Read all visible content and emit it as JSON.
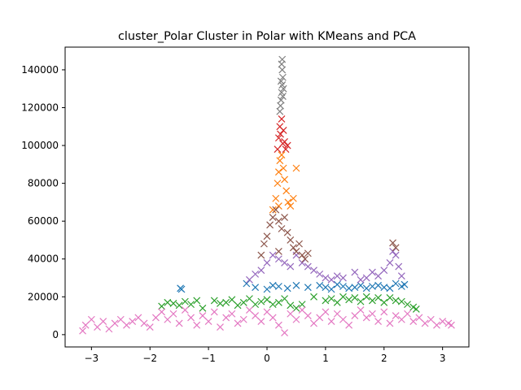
{
  "chart_data": {
    "type": "scatter",
    "title": "cluster_Polar Cluster in Polar with KMeans and PCA",
    "xlabel": "",
    "ylabel": "",
    "xlim": [
      -3.45,
      3.45
    ],
    "ylim": [
      -6500,
      152000
    ],
    "xticks": [
      -3,
      -2,
      -1,
      0,
      1,
      2,
      3
    ],
    "yticks": [
      0,
      20000,
      40000,
      60000,
      80000,
      100000,
      120000,
      140000
    ],
    "marker": "x",
    "grid": false,
    "legend": "none",
    "series": [
      {
        "color": "#1f77b4",
        "points": [
          [
            -1.48,
            24500
          ],
          [
            -1.46,
            24000
          ],
          [
            -0.35,
            27000
          ],
          [
            -0.2,
            25000
          ],
          [
            0.0,
            24000
          ],
          [
            0.1,
            26000
          ],
          [
            0.2,
            25500
          ],
          [
            0.35,
            24500
          ],
          [
            0.5,
            26000
          ],
          [
            0.7,
            25000
          ],
          [
            0.9,
            26000
          ],
          [
            1.0,
            25000
          ],
          [
            1.1,
            24000
          ],
          [
            1.2,
            26500
          ],
          [
            1.3,
            25500
          ],
          [
            1.4,
            24500
          ],
          [
            1.5,
            25000
          ],
          [
            1.6,
            26000
          ],
          [
            1.7,
            24500
          ],
          [
            1.8,
            25500
          ],
          [
            1.9,
            26000
          ],
          [
            2.0,
            25000
          ],
          [
            2.1,
            24500
          ],
          [
            2.2,
            27000
          ],
          [
            2.3,
            25500
          ],
          [
            2.35,
            26500
          ]
        ]
      },
      {
        "color": "#ff7f0e",
        "points": [
          [
            0.1,
            66000
          ],
          [
            0.15,
            72000
          ],
          [
            0.18,
            80000
          ],
          [
            0.2,
            86000
          ],
          [
            0.22,
            92000
          ],
          [
            0.25,
            95000
          ],
          [
            0.28,
            88000
          ],
          [
            0.3,
            82000
          ],
          [
            0.33,
            76000
          ],
          [
            0.36,
            70000
          ],
          [
            0.4,
            68000
          ],
          [
            0.45,
            72000
          ],
          [
            0.5,
            88000
          ],
          [
            0.2,
            68000
          ]
        ]
      },
      {
        "color": "#2ca02c",
        "points": [
          [
            -1.8,
            15000
          ],
          [
            -1.7,
            17000
          ],
          [
            -1.6,
            16500
          ],
          [
            -1.5,
            15500
          ],
          [
            -1.4,
            17500
          ],
          [
            -1.3,
            16000
          ],
          [
            -1.2,
            18000
          ],
          [
            -1.1,
            14000
          ],
          [
            -0.9,
            18000
          ],
          [
            -0.8,
            16500
          ],
          [
            -0.7,
            17000
          ],
          [
            -0.6,
            18500
          ],
          [
            -0.5,
            15500
          ],
          [
            -0.4,
            17000
          ],
          [
            -0.3,
            19000
          ],
          [
            -0.2,
            16000
          ],
          [
            -0.1,
            17500
          ],
          [
            0.0,
            18500
          ],
          [
            0.1,
            16000
          ],
          [
            0.2,
            17000
          ],
          [
            0.3,
            19000
          ],
          [
            0.4,
            15500
          ],
          [
            0.5,
            14000
          ],
          [
            0.6,
            16000
          ],
          [
            0.8,
            20000
          ],
          [
            1.0,
            18000
          ],
          [
            1.1,
            19000
          ],
          [
            1.2,
            17000
          ],
          [
            1.3,
            20000
          ],
          [
            1.4,
            18500
          ],
          [
            1.5,
            19500
          ],
          [
            1.6,
            17500
          ],
          [
            1.7,
            20000
          ],
          [
            1.8,
            18000
          ],
          [
            1.9,
            19500
          ],
          [
            2.0,
            17000
          ],
          [
            2.1,
            19500
          ],
          [
            2.2,
            18000
          ],
          [
            2.3,
            17500
          ],
          [
            2.4,
            16000
          ],
          [
            2.5,
            14500
          ],
          [
            2.55,
            13500
          ]
        ]
      },
      {
        "color": "#d62728",
        "points": [
          [
            0.18,
            98000
          ],
          [
            0.2,
            104000
          ],
          [
            0.22,
            110000
          ],
          [
            0.25,
            114000
          ],
          [
            0.28,
            108000
          ],
          [
            0.3,
            102000
          ],
          [
            0.32,
            98000
          ],
          [
            0.35,
            100000
          ],
          [
            0.23,
            106000
          ],
          [
            0.27,
            101000
          ]
        ]
      },
      {
        "color": "#9467bd",
        "points": [
          [
            -0.3,
            29000
          ],
          [
            -0.2,
            32000
          ],
          [
            -0.1,
            34000
          ],
          [
            0.0,
            38000
          ],
          [
            0.1,
            42000
          ],
          [
            0.2,
            40000
          ],
          [
            0.3,
            38000
          ],
          [
            0.4,
            36000
          ],
          [
            0.5,
            42000
          ],
          [
            0.6,
            38000
          ],
          [
            0.7,
            36000
          ],
          [
            0.8,
            34000
          ],
          [
            0.9,
            32000
          ],
          [
            1.0,
            30000
          ],
          [
            1.1,
            29000
          ],
          [
            1.2,
            31000
          ],
          [
            1.3,
            30000
          ],
          [
            1.5,
            33000
          ],
          [
            1.6,
            29000
          ],
          [
            1.7,
            30000
          ],
          [
            1.8,
            33000
          ],
          [
            1.9,
            31000
          ],
          [
            2.0,
            34000
          ],
          [
            2.1,
            38000
          ],
          [
            2.15,
            44000
          ],
          [
            2.2,
            42000
          ],
          [
            2.25,
            36000
          ],
          [
            2.3,
            31000
          ]
        ]
      },
      {
        "color": "#8c564b",
        "points": [
          [
            -0.1,
            42000
          ],
          [
            -0.05,
            48000
          ],
          [
            0.0,
            52000
          ],
          [
            0.05,
            58000
          ],
          [
            0.1,
            62000
          ],
          [
            0.15,
            66000
          ],
          [
            0.2,
            60000
          ],
          [
            0.25,
            56000
          ],
          [
            0.3,
            62000
          ],
          [
            0.35,
            54000
          ],
          [
            0.4,
            50000
          ],
          [
            0.45,
            46000
          ],
          [
            0.5,
            44000
          ],
          [
            0.55,
            48000
          ],
          [
            0.6,
            42000
          ],
          [
            0.65,
            40000
          ],
          [
            0.7,
            43000
          ],
          [
            2.15,
            48500
          ],
          [
            2.2,
            46000
          ],
          [
            0.2,
            44000
          ]
        ]
      },
      {
        "color": "#e377c2",
        "points": [
          [
            -3.15,
            2000
          ],
          [
            -3.1,
            5000
          ],
          [
            -3.0,
            8000
          ],
          [
            -2.9,
            4000
          ],
          [
            -2.8,
            7000
          ],
          [
            -2.7,
            3000
          ],
          [
            -2.6,
            6000
          ],
          [
            -2.5,
            8000
          ],
          [
            -2.4,
            5000
          ],
          [
            -2.3,
            7000
          ],
          [
            -2.2,
            9000
          ],
          [
            -2.1,
            6000
          ],
          [
            -2.0,
            4000
          ],
          [
            -1.9,
            9000
          ],
          [
            -1.8,
            12000
          ],
          [
            -1.7,
            8000
          ],
          [
            -1.6,
            11000
          ],
          [
            -1.5,
            6000
          ],
          [
            -1.4,
            13000
          ],
          [
            -1.3,
            9000
          ],
          [
            -1.2,
            5000
          ],
          [
            -1.1,
            10000
          ],
          [
            -1.0,
            7000
          ],
          [
            -0.9,
            12000
          ],
          [
            -0.8,
            4000
          ],
          [
            -0.7,
            9000
          ],
          [
            -0.6,
            11000
          ],
          [
            -0.5,
            6000
          ],
          [
            -0.4,
            8000
          ],
          [
            -0.3,
            13000
          ],
          [
            -0.2,
            10000
          ],
          [
            -0.1,
            7000
          ],
          [
            0.0,
            12000
          ],
          [
            0.1,
            9000
          ],
          [
            0.2,
            5000
          ],
          [
            0.3,
            1000
          ],
          [
            0.4,
            11000
          ],
          [
            0.5,
            8000
          ],
          [
            0.6,
            13000
          ],
          [
            0.7,
            10000
          ],
          [
            0.8,
            6000
          ],
          [
            0.9,
            9000
          ],
          [
            1.0,
            12000
          ],
          [
            1.1,
            7000
          ],
          [
            1.2,
            11000
          ],
          [
            1.3,
            8000
          ],
          [
            1.4,
            5000
          ],
          [
            1.5,
            10000
          ],
          [
            1.6,
            13000
          ],
          [
            1.7,
            9000
          ],
          [
            1.8,
            11000
          ],
          [
            1.9,
            7000
          ],
          [
            2.0,
            12000
          ],
          [
            2.1,
            6000
          ],
          [
            2.2,
            10000
          ],
          [
            2.3,
            8000
          ],
          [
            2.4,
            11000
          ],
          [
            2.5,
            7000
          ],
          [
            2.6,
            9000
          ],
          [
            2.7,
            6000
          ],
          [
            2.8,
            8000
          ],
          [
            2.9,
            5000
          ],
          [
            3.0,
            7000
          ],
          [
            3.1,
            6000
          ],
          [
            3.15,
            5000
          ]
        ]
      },
      {
        "color": "#7f7f7f",
        "points": [
          [
            0.22,
            118000
          ],
          [
            0.24,
            124000
          ],
          [
            0.25,
            128000
          ],
          [
            0.26,
            132000
          ],
          [
            0.27,
            136000
          ],
          [
            0.26,
            140000
          ],
          [
            0.25,
            143000
          ],
          [
            0.26,
            145500
          ],
          [
            0.28,
            130000
          ],
          [
            0.23,
            121000
          ],
          [
            0.27,
            126000
          ],
          [
            0.24,
            134000
          ]
        ]
      }
    ]
  }
}
